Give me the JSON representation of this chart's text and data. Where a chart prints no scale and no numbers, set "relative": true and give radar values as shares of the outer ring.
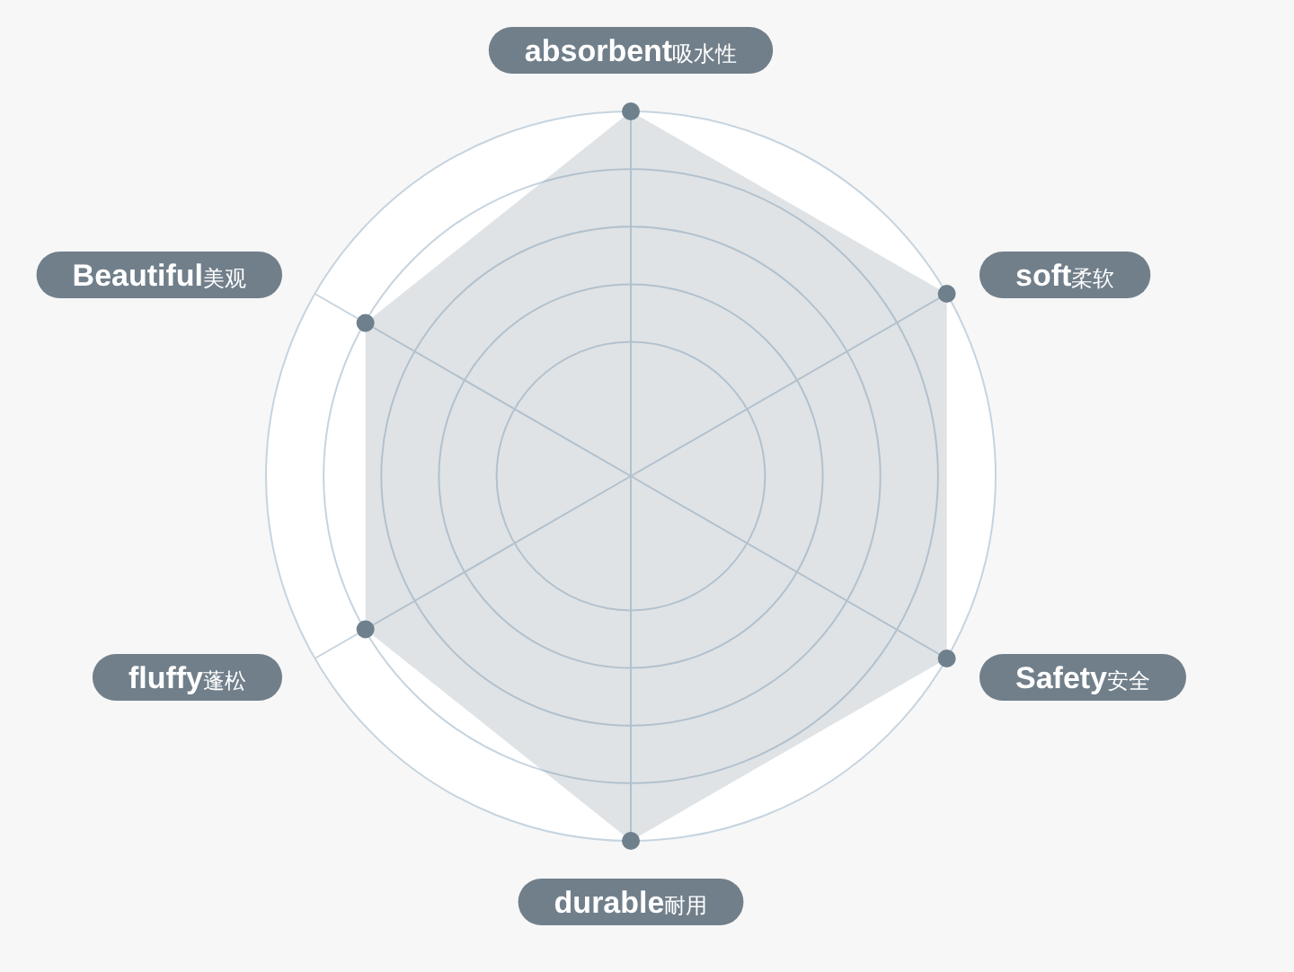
{
  "chart_data": {
    "type": "radar",
    "categories": [
      "absorbent吸水性",
      "soft柔软",
      "Safety安全",
      "durable耐用",
      "fluffy蓬松",
      "Beautiful美观"
    ],
    "relative": true,
    "grid": true,
    "marker": "circle",
    "series": [
      {
        "color": "#6f808d",
        "values": [
          1,
          1,
          1,
          1,
          0.84,
          0.84
        ]
      }
    ]
  }
}
